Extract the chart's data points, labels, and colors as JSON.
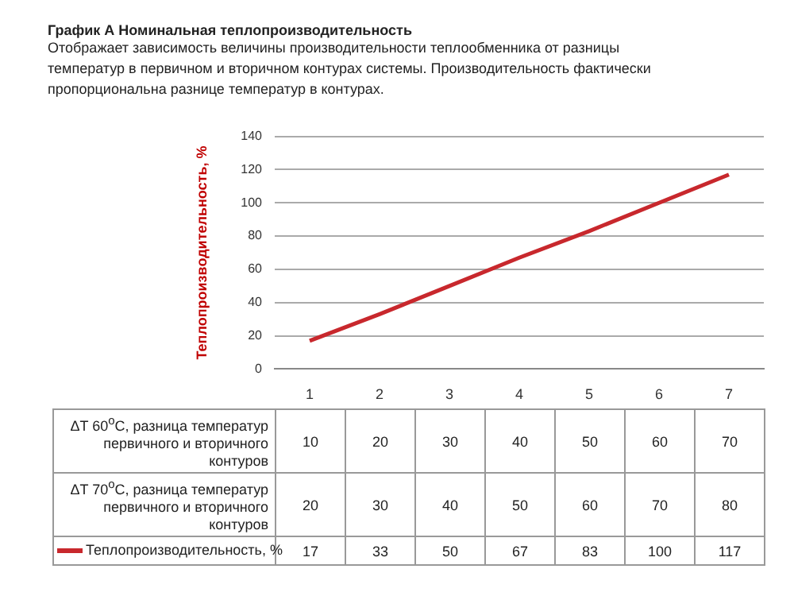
{
  "chart_data": {
    "type": "line",
    "title": "График А Номинальная теплопроизводительность",
    "subtitle": "Отображает зависимость величины производительности теплообменника от разницы температур в первичном и вторичном контурах системы. Производительность фактически пропорциональна разнице температур в контурах.",
    "ylabel": "Теплопроизводительность, %",
    "categories": [
      "1",
      "2",
      "3",
      "4",
      "5",
      "6",
      "7"
    ],
    "series": [
      {
        "name": "Теплопроизводительность, %",
        "color": "#c8282d",
        "values": [
          17,
          33,
          50,
          67,
          83,
          100,
          117
        ]
      }
    ],
    "ylim": [
      0,
      140
    ],
    "yticks": [
      0,
      20,
      40,
      60,
      80,
      100,
      120,
      140
    ],
    "grid": "y",
    "legend": "bottom",
    "marker": "none",
    "data_labels": true,
    "annotations": [
      "ΔT 60$^{o}$C, разница температур первичного и вторичного контуров",
      "10",
      "20",
      "30",
      "40",
      "50",
      "60",
      "70",
      "ΔT 70$^{o}$C, разница температур первичного и вторичного контуров",
      "20",
      "30",
      "40",
      "50",
      "60",
      "70",
      "80"
    ]
  }
}
